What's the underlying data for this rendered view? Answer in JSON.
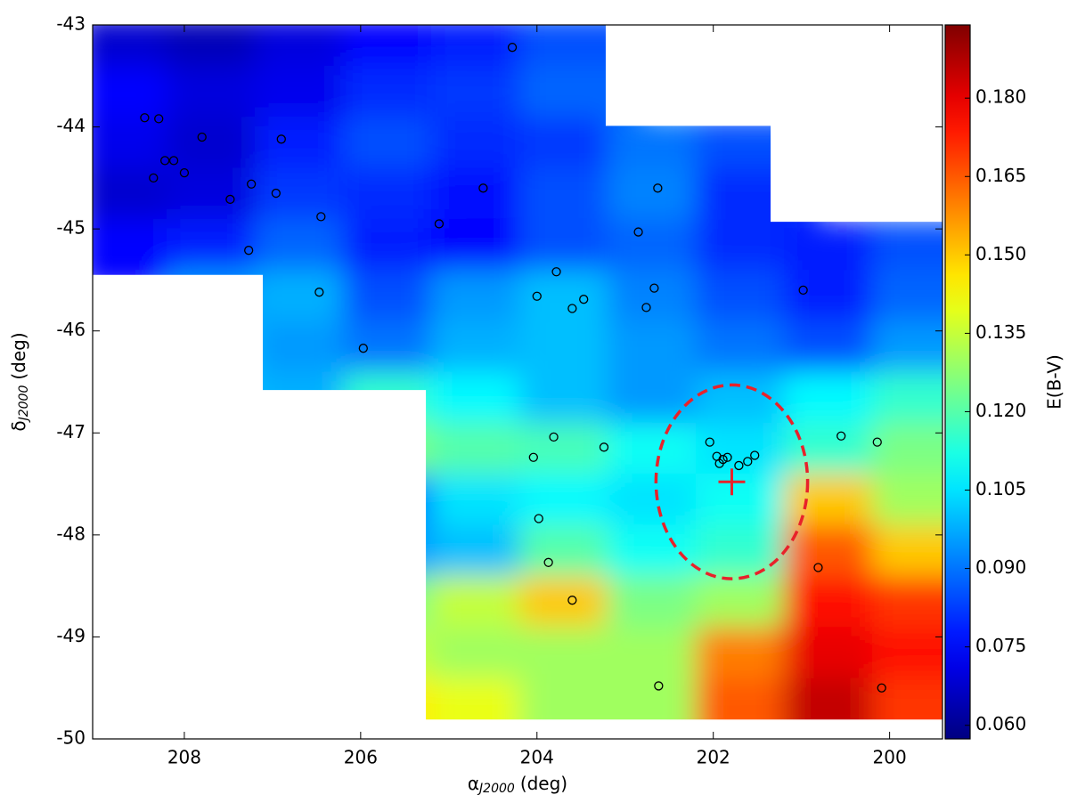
{
  "chart_data": {
    "type": "map",
    "colormap": "jet",
    "xlim": [
      209.04,
      199.4
    ],
    "ylim": [
      -50,
      -43
    ],
    "xticks": [
      208,
      206,
      204,
      202,
      200
    ],
    "yticks": [
      -50,
      -49,
      -48,
      -47,
      -46,
      -45,
      -44,
      -43
    ],
    "x_label": {
      "symbol": "α",
      "subscript": "J2000",
      "unit": "(deg)"
    },
    "y_label": {
      "symbol": "δ",
      "subscript": "J2000",
      "unit": "(deg)"
    },
    "colorbar": {
      "label": "E(B-V)",
      "clim": [
        0.0574,
        0.194
      ],
      "ticks": [
        {
          "value": 0.06,
          "label": "0.060"
        },
        {
          "value": 0.075,
          "label": "0.075"
        },
        {
          "value": 0.09,
          "label": "0.090"
        },
        0.105,
        {
          "value": 0.12,
          "label": "0.120"
        },
        0.135,
        {
          "value": 0.15,
          "label": "0.150"
        },
        0.165,
        {
          "value": 0.18,
          "label": "0.180"
        }
      ]
    },
    "footprint": [
      [
        209.04,
        -43
      ],
      [
        203.22,
        -43
      ],
      [
        203.22,
        -43.99
      ],
      [
        201.35,
        -43.99
      ],
      [
        201.35,
        -44.93
      ],
      [
        199.4,
        -44.93
      ],
      [
        199.4,
        -49.81
      ],
      [
        205.26,
        -49.81
      ],
      [
        205.26,
        -46.58
      ],
      [
        207.11,
        -46.58
      ],
      [
        207.11,
        -45.45
      ],
      [
        209.04,
        -45.45
      ]
    ],
    "heatmap": {
      "ra": [
        208.5,
        207.5,
        206.5,
        205.5,
        204.5,
        203.5,
        202.5,
        201.5,
        200.5,
        199.5
      ],
      "dec": [
        -43.25,
        -43.75,
        -44.25,
        -44.75,
        -45.25,
        -45.75,
        -46.25,
        -46.75,
        -47.25,
        -47.75,
        -48.25,
        -48.75,
        -49.25,
        -49.75
      ],
      "values": [
        [
          0.068,
          0.065,
          0.07,
          0.075,
          0.078,
          0.085,
          null,
          null,
          null,
          null
        ],
        [
          0.075,
          0.07,
          0.072,
          0.08,
          0.082,
          0.088,
          null,
          null,
          null,
          null
        ],
        [
          0.072,
          0.068,
          0.078,
          0.085,
          0.08,
          0.082,
          0.09,
          0.085,
          null,
          null
        ],
        [
          0.068,
          0.07,
          0.082,
          0.08,
          0.076,
          0.085,
          0.092,
          0.08,
          null,
          null
        ],
        [
          0.075,
          0.078,
          0.088,
          0.078,
          0.075,
          0.085,
          0.088,
          0.08,
          0.078,
          0.085
        ],
        [
          null,
          0.095,
          0.098,
          0.085,
          0.095,
          0.1,
          0.092,
          0.085,
          0.078,
          0.088
        ],
        [
          null,
          0.1,
          0.095,
          0.09,
          0.098,
          0.1,
          0.095,
          0.09,
          0.085,
          0.095
        ],
        [
          null,
          0.1,
          0.098,
          0.115,
          0.108,
          0.1,
          0.095,
          0.1,
          0.108,
          0.115
        ],
        [
          null,
          null,
          null,
          0.125,
          0.12,
          0.118,
          0.11,
          0.105,
          0.115,
          0.125
        ],
        [
          null,
          null,
          null,
          0.09,
          0.105,
          0.108,
          0.105,
          0.11,
          0.15,
          0.13
        ],
        [
          null,
          null,
          null,
          0.095,
          0.1,
          0.12,
          0.11,
          0.115,
          0.165,
          0.15
        ],
        [
          null,
          null,
          null,
          0.125,
          0.135,
          0.15,
          0.125,
          0.13,
          0.175,
          0.17
        ],
        [
          null,
          null,
          null,
          0.135,
          0.13,
          0.13,
          0.13,
          0.16,
          0.18,
          0.175
        ],
        [
          null,
          null,
          null,
          0.145,
          0.14,
          0.13,
          0.13,
          0.165,
          0.185,
          0.17
        ]
      ]
    },
    "sources": {
      "color": "#000000",
      "x": [
        204.28,
        208.45,
        208.29,
        207.8,
        206.9,
        208.22,
        208.12,
        208.35,
        208.0,
        207.24,
        207.48,
        206.96,
        204.61,
        202.63,
        206.45,
        205.11,
        202.85,
        207.27,
        203.78,
        206.47,
        200.98,
        204.0,
        202.67,
        203.47,
        203.6,
        202.76,
        205.97,
        202.04,
        200.55,
        200.14,
        203.81,
        203.24,
        204.04,
        201.96,
        201.89,
        201.84,
        201.93,
        201.53,
        201.61,
        201.71,
        203.98,
        203.87,
        200.81,
        203.6,
        202.62,
        200.09
      ],
      "y": [
        -43.22,
        -43.91,
        -43.92,
        -44.1,
        -44.12,
        -44.33,
        -44.33,
        -44.5,
        -44.45,
        -44.56,
        -44.71,
        -44.65,
        -44.6,
        -44.6,
        -44.88,
        -44.95,
        -45.03,
        -45.21,
        -45.42,
        -45.62,
        -45.6,
        -45.66,
        -45.58,
        -45.69,
        -45.78,
        -45.77,
        -46.17,
        -47.09,
        -47.03,
        -47.09,
        -47.04,
        -47.14,
        -47.24,
        -47.23,
        -47.26,
        -47.24,
        -47.3,
        -47.22,
        -47.28,
        -47.32,
        -47.84,
        -48.27,
        -48.32,
        -48.64,
        -49.48,
        -49.5
      ]
    },
    "center": {
      "x": 201.79,
      "y": -47.48,
      "color": "#e8222a"
    },
    "ellipse": {
      "x": 201.79,
      "y": -47.48,
      "rx": 0.86,
      "ry": 0.95,
      "color": "#e8222a"
    }
  }
}
